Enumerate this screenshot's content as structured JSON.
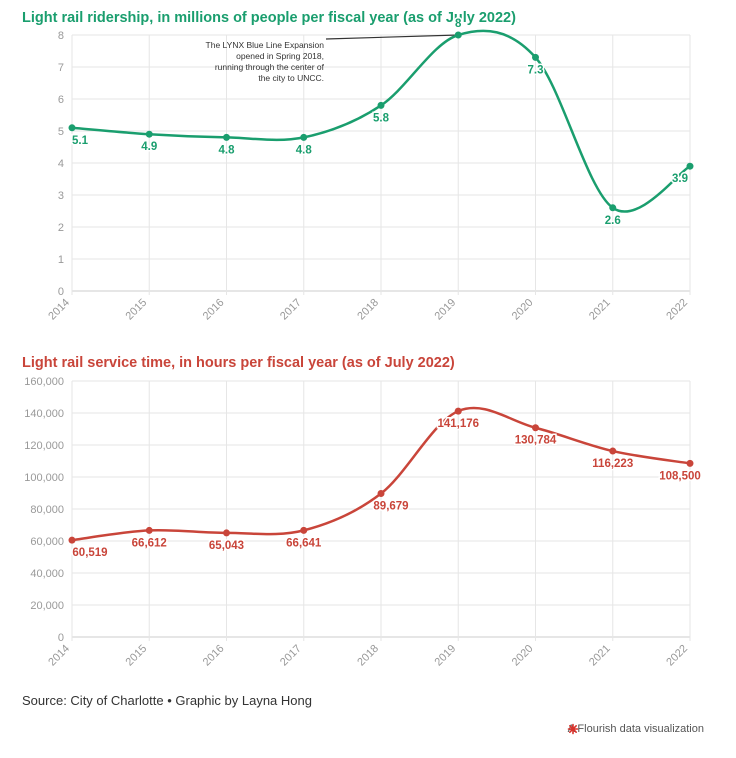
{
  "charts": {
    "ridership": {
      "title": "Light rail ridership, in millions of people per fiscal year (as of July 2022)",
      "color": "#1a9e6e"
    },
    "service": {
      "title": "Light rail service time, in hours per fiscal year (as of July 2022)",
      "color": "#c9453a"
    }
  },
  "chart_data": [
    {
      "type": "line",
      "title": "Light rail ridership, in millions of people per fiscal year (as of July 2022)",
      "x": [
        "2014",
        "2015",
        "2016",
        "2017",
        "2018",
        "2019",
        "2020",
        "2021",
        "2022"
      ],
      "values": [
        5.1,
        4.9,
        4.8,
        4.8,
        5.8,
        8,
        7.3,
        2.6,
        3.9
      ],
      "value_labels": [
        "5.1",
        "4.9",
        "4.8",
        "4.8",
        "5.8",
        "8",
        "7.3",
        "2.6",
        "3.9"
      ],
      "yticks": [
        0,
        1,
        2,
        3,
        4,
        5,
        6,
        7,
        8
      ],
      "ytick_labels": [
        "0",
        "1",
        "2",
        "3",
        "4",
        "5",
        "6",
        "7",
        "8"
      ],
      "ylim": [
        0,
        8
      ],
      "grid": true,
      "line_style": "smooth",
      "color": "#1a9e6e",
      "annotation": {
        "x": "2019",
        "lines": [
          "The LYNX Blue Line Expansion",
          "opened in Spring 2018,",
          "running through the center of",
          "the city to UNCC."
        ]
      }
    },
    {
      "type": "line",
      "title": "Light rail service time, in hours per fiscal year (as of July 2022)",
      "x": [
        "2014",
        "2015",
        "2016",
        "2017",
        "2018",
        "2019",
        "2020",
        "2021",
        "2022"
      ],
      "values": [
        60519,
        66612,
        65043,
        66641,
        89679,
        141176,
        130784,
        116223,
        108500
      ],
      "value_labels": [
        "60,519",
        "66,612",
        "65,043",
        "66,641",
        "89,679",
        "141,176",
        "130,784",
        "116,223",
        "108,500"
      ],
      "yticks": [
        0,
        20000,
        40000,
        60000,
        80000,
        100000,
        120000,
        140000,
        160000
      ],
      "ytick_labels": [
        "0",
        "20,000",
        "40,000",
        "60,000",
        "80,000",
        "100,000",
        "120,000",
        "140,000",
        "160,000"
      ],
      "ylim": [
        0,
        160000
      ],
      "grid": true,
      "line_style": "smooth",
      "color": "#c9453a"
    }
  ],
  "footer": {
    "source": "Source: City of Charlotte • Graphic by Layna Hong",
    "credit": "A Flourish data visualization",
    "credit_icon": "flourish-logo-icon",
    "credit_icon_color": "#d8322b"
  }
}
